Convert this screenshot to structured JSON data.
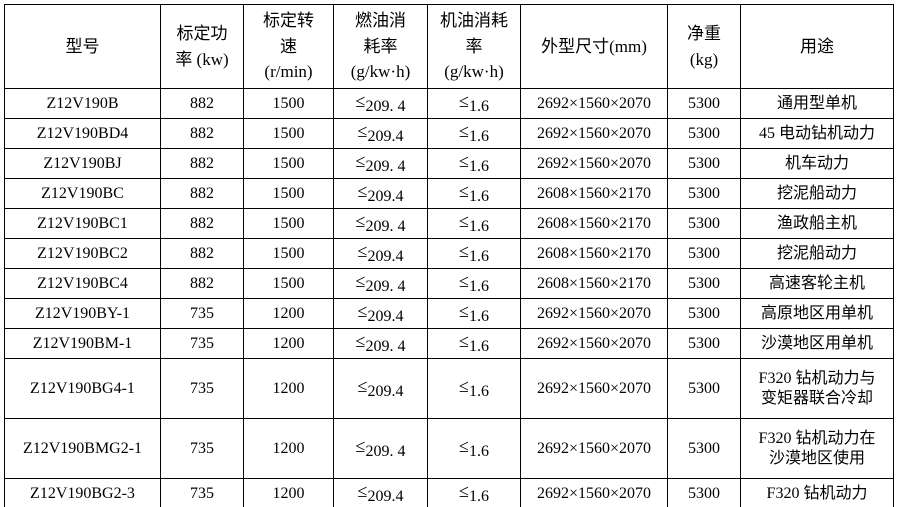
{
  "colors": {
    "background": "#ffffff",
    "border": "#000000",
    "text": "#000000"
  },
  "table": {
    "columns": [
      {
        "key": "model",
        "label": "型号"
      },
      {
        "key": "power",
        "label": "标定功\n率 (kw)"
      },
      {
        "key": "speed",
        "label": "标定转\n速\n(r/min)"
      },
      {
        "key": "fuel",
        "label": "燃油消\n耗率\n(g/kw·h)"
      },
      {
        "key": "oil",
        "label": "机油消耗\n率\n(g/kw·h)"
      },
      {
        "key": "dims",
        "label": "外型尺寸(mm)"
      },
      {
        "key": "weight",
        "label": "净重\n(kg)"
      },
      {
        "key": "usage",
        "label": "用途"
      }
    ],
    "rows": [
      {
        "model": "Z12V190B",
        "power": "882",
        "speed": "1500",
        "fuel": {
          "sym": "≤",
          "num": "209. 4"
        },
        "oil": {
          "sym": "≤",
          "num": "1.6"
        },
        "dims": "2692×1560×2070",
        "weight": "5300",
        "usage": "通用型单机"
      },
      {
        "model": "Z12V190BD4",
        "power": "882",
        "speed": "1500",
        "fuel": {
          "sym": "≤",
          "num": "209.4"
        },
        "oil": {
          "sym": "≤",
          "num": "1.6"
        },
        "dims": "2692×1560×2070",
        "weight": "5300",
        "usage": "45 电动钻机动力"
      },
      {
        "model": "Z12V190BJ",
        "power": "882",
        "speed": "1500",
        "fuel": {
          "sym": "≤",
          "num": "209. 4"
        },
        "oil": {
          "sym": "≤",
          "num": "1.6"
        },
        "dims": "2692×1560×2070",
        "weight": "5300",
        "usage": "机车动力"
      },
      {
        "model": "Z12V190BC",
        "power": "882",
        "speed": "1500",
        "fuel": {
          "sym": "≤",
          "num": "209.4"
        },
        "oil": {
          "sym": "≤",
          "num": "1.6"
        },
        "dims": "2608×1560×2170",
        "weight": "5300",
        "usage": "挖泥船动力"
      },
      {
        "model": "Z12V190BC1",
        "power": "882",
        "speed": "1500",
        "fuel": {
          "sym": "≤",
          "num": "209. 4"
        },
        "oil": {
          "sym": "≤",
          "num": "1.6"
        },
        "dims": "2608×1560×2170",
        "weight": "5300",
        "usage": "渔政船主机"
      },
      {
        "model": "Z12V190BC2",
        "power": "882",
        "speed": "1500",
        "fuel": {
          "sym": "≤",
          "num": "209.4"
        },
        "oil": {
          "sym": "≤",
          "num": "1.6"
        },
        "dims": "2608×1560×2170",
        "weight": "5300",
        "usage": "挖泥船动力"
      },
      {
        "model": "Z12V190BC4",
        "power": "882",
        "speed": "1500",
        "fuel": {
          "sym": "≤",
          "num": "209. 4"
        },
        "oil": {
          "sym": "≤",
          "num": "1.6"
        },
        "dims": "2608×1560×2170",
        "weight": "5300",
        "usage": "高速客轮主机"
      },
      {
        "model": "Z12V190BY-1",
        "power": "735",
        "speed": "1200",
        "fuel": {
          "sym": "≤",
          "num": "209.4"
        },
        "oil": {
          "sym": "≤",
          "num": "1.6"
        },
        "dims": "2692×1560×2070",
        "weight": "5300",
        "usage": "高原地区用单机"
      },
      {
        "model": "Z12V190BM-1",
        "power": "735",
        "speed": "1200",
        "fuel": {
          "sym": "≤",
          "num": "209. 4"
        },
        "oil": {
          "sym": "≤",
          "num": "1.6"
        },
        "dims": "2692×1560×2070",
        "weight": "5300",
        "usage": "沙漠地区用单机"
      },
      {
        "model": "Z12V190BG4-1",
        "power": "735",
        "speed": "1200",
        "fuel": {
          "sym": "≤",
          "num": "209.4"
        },
        "oil": {
          "sym": "≤",
          "num": "1.6"
        },
        "dims": "2692×1560×2070",
        "weight": "5300",
        "usage": "F320 钻机动力与\n变矩器联合冷却",
        "tall": true
      },
      {
        "model": "Z12V190BMG2-1",
        "power": "735",
        "speed": "1200",
        "fuel": {
          "sym": "≤",
          "num": "209. 4"
        },
        "oil": {
          "sym": "≤",
          "num": "1.6"
        },
        "dims": "2692×1560×2070",
        "weight": "5300",
        "usage": "F320 钻机动力在\n沙漠地区使用",
        "tall": true
      },
      {
        "model": "Z12V190BG2-3",
        "power": "735",
        "speed": "1200",
        "fuel": {
          "sym": "≤",
          "num": "209.4"
        },
        "oil": {
          "sym": "≤",
          "num": "1.6"
        },
        "dims": "2692×1560×2070",
        "weight": "5300",
        "usage": "F320 钻机动力"
      }
    ]
  }
}
